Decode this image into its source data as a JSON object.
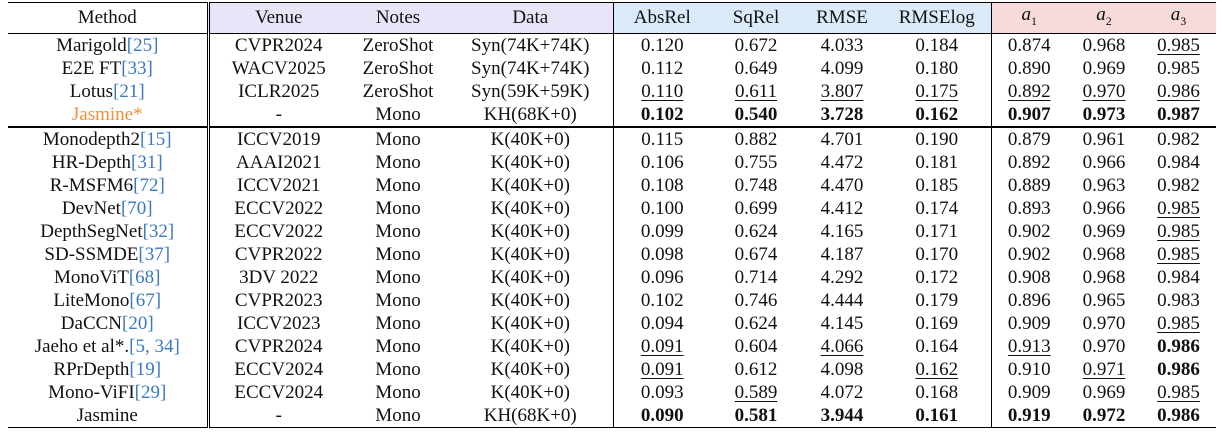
{
  "headers": {
    "method": "Method",
    "venue": "Venue",
    "notes": "Notes",
    "data": "Data",
    "metrics": [
      "AbsRel",
      "SqRel",
      "RMSE",
      "RMSElog"
    ],
    "acc": [
      {
        "sym": "a",
        "sub": "1"
      },
      {
        "sym": "a",
        "sub": "2"
      },
      {
        "sym": "a",
        "sub": "3"
      }
    ]
  },
  "groups": [
    {
      "rows": [
        {
          "name": "Marigold",
          "ref": "[25]",
          "venue": "CVPR2024",
          "notes": "ZeroShot",
          "data": "Syn(74K+74K)",
          "vals": [
            "0.120",
            "0.672",
            "4.033",
            "0.184",
            "0.874",
            "0.968",
            "0.985"
          ],
          "bold": [],
          "under": [
            6
          ]
        },
        {
          "name": "E2E FT",
          "ref": "[33]",
          "venue": "WACV2025",
          "notes": "ZeroShot",
          "data": "Syn(74K+74K)",
          "vals": [
            "0.112",
            "0.649",
            "4.099",
            "0.180",
            "0.890",
            "0.969",
            "0.985"
          ],
          "bold": [],
          "under": []
        },
        {
          "name": "Lotus",
          "ref": "[21]",
          "venue": "ICLR2025",
          "notes": "ZeroShot",
          "data": "Syn(59K+59K)",
          "vals": [
            "0.110",
            "0.611",
            "3.807",
            "0.175",
            "0.892",
            "0.970",
            "0.986"
          ],
          "bold": [],
          "under": [
            0,
            1,
            2,
            3,
            4,
            5,
            6
          ]
        },
        {
          "name": "Jasmine*",
          "ref": "",
          "highlight": true,
          "venue": "-",
          "notes": "Mono",
          "data": "KH(68K+0)",
          "vals": [
            "0.102",
            "0.540",
            "3.728",
            "0.162",
            "0.907",
            "0.973",
            "0.987"
          ],
          "bold": [
            0,
            1,
            2,
            3,
            4,
            5,
            6
          ],
          "under": []
        }
      ]
    },
    {
      "rows": [
        {
          "name": "Monodepth2",
          "ref": "[15]",
          "venue": "ICCV2019",
          "notes": "Mono",
          "data": "K(40K+0)",
          "vals": [
            "0.115",
            "0.882",
            "4.701",
            "0.190",
            "0.879",
            "0.961",
            "0.982"
          ],
          "bold": [],
          "under": []
        },
        {
          "name": "HR-Depth",
          "ref": "[31]",
          "venue": "AAAI2021",
          "notes": "Mono",
          "data": "K(40K+0)",
          "vals": [
            "0.106",
            "0.755",
            "4.472",
            "0.181",
            "0.892",
            "0.966",
            "0.984"
          ],
          "bold": [],
          "under": []
        },
        {
          "name": "R-MSFM6",
          "ref": "[72]",
          "venue": "ICCV2021",
          "notes": "Mono",
          "data": "K(40K+0)",
          "vals": [
            "0.108",
            "0.748",
            "4.470",
            "0.185",
            "0.889",
            "0.963",
            "0.982"
          ],
          "bold": [],
          "under": []
        },
        {
          "name": "DevNet",
          "ref": "[70]",
          "venue": "ECCV2022",
          "notes": "Mono",
          "data": "K(40K+0)",
          "vals": [
            "0.100",
            "0.699",
            "4.412",
            "0.174",
            "0.893",
            "0.966",
            "0.985"
          ],
          "bold": [],
          "under": [
            6
          ]
        },
        {
          "name": "DepthSegNet",
          "ref": "[32]",
          "venue": "ECCV2022",
          "notes": "Mono",
          "data": "K(40K+0)",
          "vals": [
            "0.099",
            "0.624",
            "4.165",
            "0.171",
            "0.902",
            "0.969",
            "0.985"
          ],
          "bold": [],
          "under": [
            6
          ]
        },
        {
          "name": "SD-SSMDE",
          "ref": "[37]",
          "venue": "CVPR2022",
          "notes": "Mono",
          "data": "K(40K+0)",
          "vals": [
            "0.098",
            "0.674",
            "4.187",
            "0.170",
            "0.902",
            "0.968",
            "0.985"
          ],
          "bold": [],
          "under": [
            6
          ]
        },
        {
          "name": "MonoViT",
          "ref": "[68]",
          "venue": "3DV 2022",
          "notes": "Mono",
          "data": "K(40K+0)",
          "vals": [
            "0.096",
            "0.714",
            "4.292",
            "0.172",
            "0.908",
            "0.968",
            "0.984"
          ],
          "bold": [],
          "under": []
        },
        {
          "name": "LiteMono",
          "ref": "[67]",
          "venue": "CVPR2023",
          "notes": "Mono",
          "data": "K(40K+0)",
          "vals": [
            "0.102",
            "0.746",
            "4.444",
            "0.179",
            "0.896",
            "0.965",
            "0.983"
          ],
          "bold": [],
          "under": []
        },
        {
          "name": "DaCCN",
          "ref": "[20]",
          "venue": "ICCV2023",
          "notes": "Mono",
          "data": "K(40K+0)",
          "vals": [
            "0.094",
            "0.624",
            "4.145",
            "0.169",
            "0.909",
            "0.970",
            "0.985"
          ],
          "bold": [],
          "under": [
            6
          ]
        },
        {
          "name": "Jaeho et al*.",
          "ref": "[5, 34]",
          "venue": "CVPR2024",
          "notes": "Mono",
          "data": "K(40K+0)",
          "vals": [
            "0.091",
            "0.604",
            "4.066",
            "0.164",
            "0.913",
            "0.970",
            "0.986"
          ],
          "bold": [
            6
          ],
          "under": [
            0,
            2,
            4
          ]
        },
        {
          "name": "RPrDepth",
          "ref": "[19]",
          "venue": "ECCV2024",
          "notes": "Mono",
          "data": "K(40K+0)",
          "vals": [
            "0.091",
            "0.612",
            "4.098",
            "0.162",
            "0.910",
            "0.971",
            "0.986"
          ],
          "bold": [
            6
          ],
          "under": [
            0,
            3,
            5
          ]
        },
        {
          "name": "Mono-ViFI",
          "ref": "[29]",
          "venue": "ECCV2024",
          "notes": "Mono",
          "data": "K(40K+0)",
          "vals": [
            "0.093",
            "0.589",
            "4.072",
            "0.168",
            "0.909",
            "0.969",
            "0.985"
          ],
          "bold": [],
          "under": [
            1,
            6
          ]
        },
        {
          "name": "Jasmine",
          "ref": "",
          "venue": "-",
          "notes": "Mono",
          "data": "KH(68K+0)",
          "vals": [
            "0.090",
            "0.581",
            "3.944",
            "0.161",
            "0.919",
            "0.972",
            "0.986"
          ],
          "bold": [
            0,
            1,
            2,
            3,
            4,
            5,
            6
          ],
          "under": []
        }
      ]
    }
  ]
}
